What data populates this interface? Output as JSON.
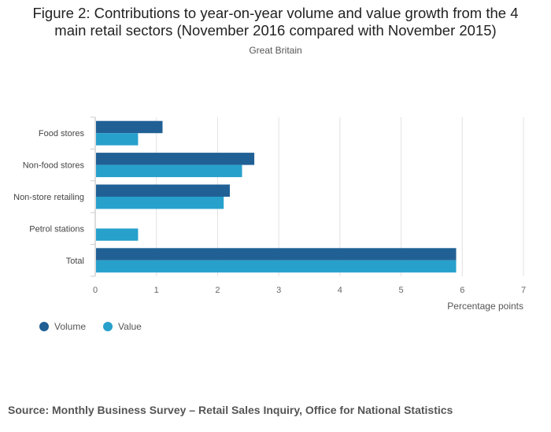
{
  "chart_data": {
    "type": "bar",
    "orientation": "horizontal",
    "title": "Figure 2: Contributions to year-on-year volume and value growth from the 4 main retail sectors (November 2016 compared with November 2015)",
    "subtitle": "Great Britain",
    "xlabel": "Percentage points",
    "ylabel": "",
    "xlim": [
      0,
      7
    ],
    "x_ticks": [
      "0",
      "1",
      "2",
      "3",
      "4",
      "5",
      "6",
      "7"
    ],
    "grid": "vertical",
    "legend_position": "bottom-left",
    "categories": [
      "Food stores",
      "Non-food stores",
      "Non-store retailing",
      "Petrol stations",
      "Total"
    ],
    "series": [
      {
        "name": "Volume",
        "color": "#206095",
        "values": [
          1.1,
          2.6,
          2.2,
          0,
          5.9
        ]
      },
      {
        "name": "Value",
        "color": "#27a0cc",
        "values": [
          0.7,
          2.4,
          2.1,
          0.7,
          5.9
        ]
      }
    ],
    "source": "Source: Monthly Business Survey – Retail Sales Inquiry, Office for National Statistics"
  }
}
